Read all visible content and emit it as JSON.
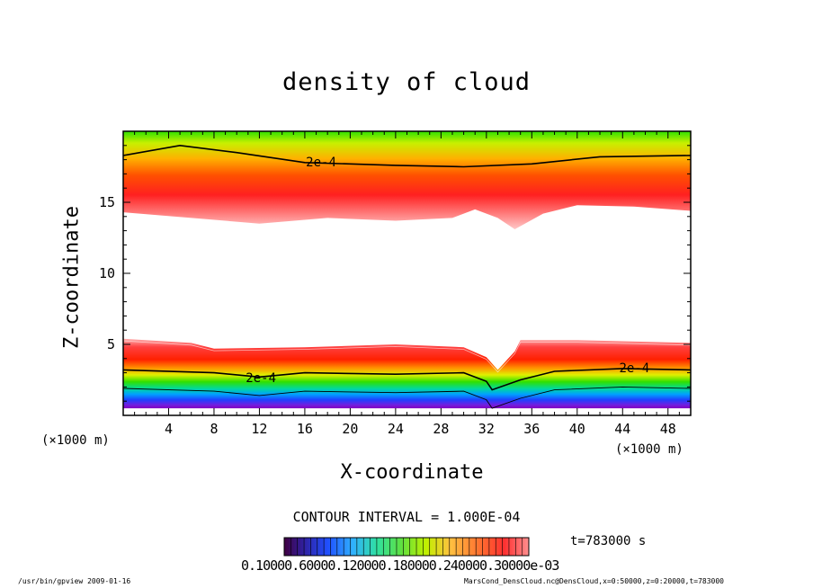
{
  "chart_data": {
    "type": "heatmap",
    "title": "density of cloud",
    "xlabel": "X-coordinate",
    "ylabel": "Z-coordinate",
    "x_unit_left": "(×1000 m)",
    "x_unit_right": "(×1000 m)",
    "xlim": [
      0,
      50
    ],
    "ylim": [
      0,
      20
    ],
    "x_ticks": [
      "4",
      "8",
      "12",
      "16",
      "20",
      "24",
      "28",
      "32",
      "36",
      "40",
      "44",
      "48"
    ],
    "x_tick_values": [
      4,
      8,
      12,
      16,
      20,
      24,
      28,
      32,
      36,
      40,
      44,
      48
    ],
    "y_ticks": [
      "5",
      "10",
      "15"
    ],
    "y_tick_values": [
      5,
      10,
      15
    ],
    "contour_labels": [
      "2e-4",
      "2e-4",
      "2e-4"
    ],
    "contour_interval": "CONTOUR INTERVAL = 1.000E-04",
    "time": "t=783000 s",
    "colorbar_labels": "0.10000.60000.120000.180000.240000.30000e-03",
    "upper_layer_bottom_z": [
      [
        0,
        14.3
      ],
      [
        6,
        13.9
      ],
      [
        12,
        13.5
      ],
      [
        18,
        13.9
      ],
      [
        24,
        13.7
      ],
      [
        29,
        13.9
      ],
      [
        31,
        14.5
      ],
      [
        33,
        13.9
      ],
      [
        34.5,
        13.1
      ],
      [
        37,
        14.2
      ],
      [
        40,
        14.8
      ],
      [
        45,
        14.7
      ],
      [
        50,
        14.4
      ]
    ],
    "upper_contour_2e4_z": [
      [
        0,
        18.3
      ],
      [
        5,
        19.0
      ],
      [
        10,
        18.5
      ],
      [
        16,
        17.8
      ],
      [
        24,
        17.6
      ],
      [
        30,
        17.5
      ],
      [
        36,
        17.7
      ],
      [
        42,
        18.2
      ],
      [
        50,
        18.3
      ]
    ],
    "lower_layer_top_z": [
      [
        0,
        5.4
      ],
      [
        6,
        5.1
      ],
      [
        8,
        4.7
      ],
      [
        16,
        4.8
      ],
      [
        24,
        5.0
      ],
      [
        30,
        4.8
      ],
      [
        32,
        4.1
      ],
      [
        33,
        3.2
      ],
      [
        34.5,
        4.5
      ],
      [
        35,
        5.3
      ],
      [
        40,
        5.3
      ],
      [
        50,
        5.1
      ]
    ],
    "lower_contour_2e4_z": [
      [
        0,
        3.2
      ],
      [
        8,
        3.0
      ],
      [
        12,
        2.7
      ],
      [
        16,
        3.0
      ],
      [
        24,
        2.9
      ],
      [
        30,
        3.0
      ],
      [
        32,
        2.4
      ],
      [
        32.5,
        1.8
      ],
      [
        35,
        2.5
      ],
      [
        38,
        3.1
      ],
      [
        44,
        3.3
      ],
      [
        50,
        3.2
      ]
    ]
  },
  "footer": {
    "left": "/usr/bin/gpview  2009-01-16",
    "right": "MarsCond_DensCloud.nc@DensCloud,x=0:50000,z=0:20000,t=783000"
  }
}
